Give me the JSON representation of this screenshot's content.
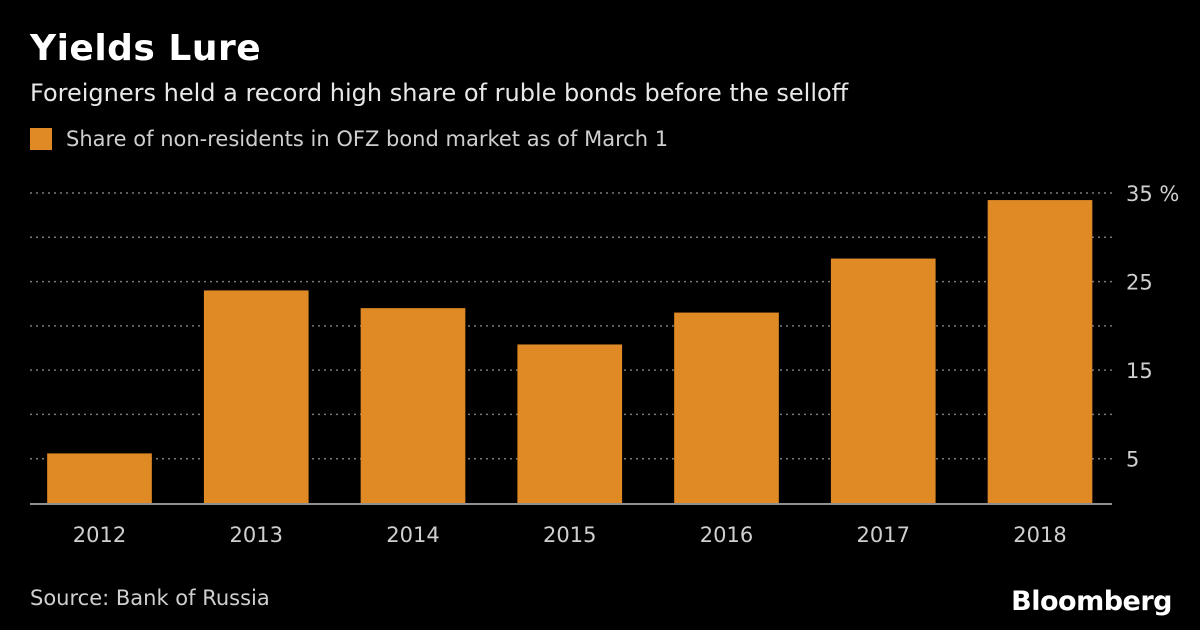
{
  "header": {
    "title": "Yields Lure",
    "subtitle": "Foreigners held a record high share of ruble bonds before the selloff"
  },
  "legend": {
    "label": "Share of non-residents in OFZ bond market as of March 1",
    "color": "#E08A26"
  },
  "footer": {
    "source": "Source: Bank of Russia",
    "brand": "Bloomberg"
  },
  "colors": {
    "background": "#000000",
    "bar": "#E08A26",
    "grid": "#7a7a7a",
    "axis_text": "#cfcfcf"
  },
  "chart_data": {
    "type": "bar",
    "title": "Yields Lure",
    "subtitle": "Foreigners held a record high share of ruble bonds before the selloff",
    "categories": [
      "2012",
      "2013",
      "2014",
      "2015",
      "2016",
      "2017",
      "2018"
    ],
    "series": [
      {
        "name": "Share of non-residents in OFZ bond market as of March 1",
        "values": [
          5.6,
          24.0,
          22.0,
          17.9,
          21.5,
          27.6,
          34.2
        ]
      }
    ],
    "ylim": [
      0,
      35
    ],
    "y_ticks": [
      5,
      15,
      25,
      35
    ],
    "y_tick_labels": [
      "5",
      "15",
      "25",
      "35 %"
    ],
    "y_grid_step": 5,
    "y_axis_side": "right",
    "grid": true,
    "xlabel": "",
    "ylabel": "%"
  }
}
